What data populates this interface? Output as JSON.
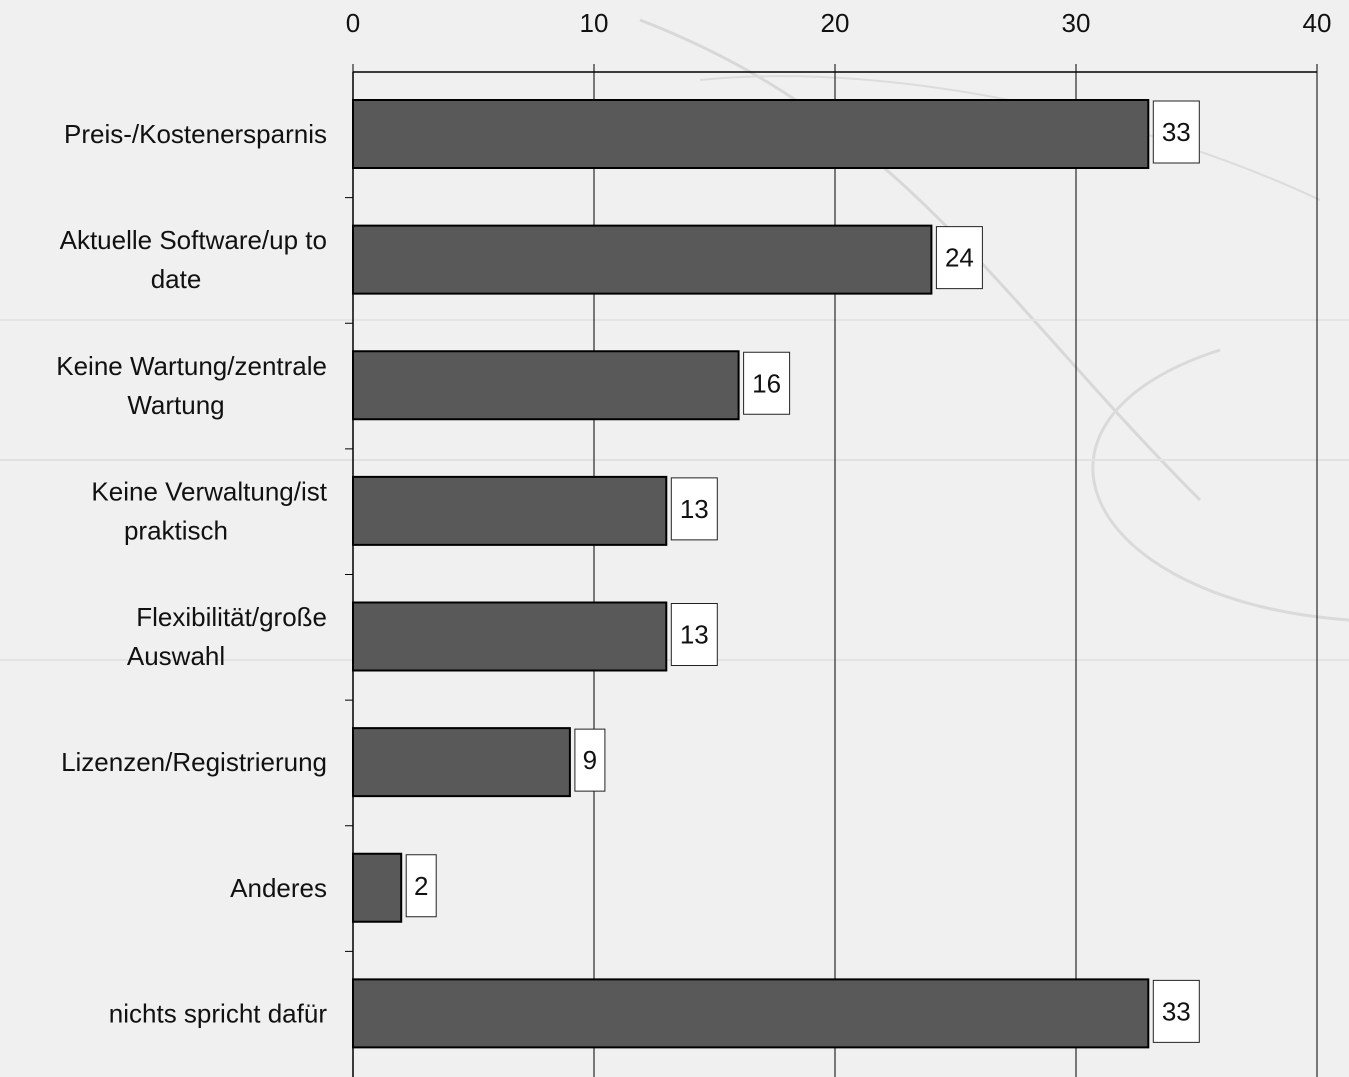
{
  "chart_data": {
    "type": "bar",
    "orientation": "horizontal",
    "categories": [
      [
        "Preis-/Kostenersparnis"
      ],
      [
        "Aktuelle Software/up to",
        "date"
      ],
      [
        "Keine Wartung/zentrale",
        "Wartung"
      ],
      [
        "Keine Verwaltung/ist",
        "praktisch"
      ],
      [
        "Flexibilität/große",
        "Auswahl"
      ],
      [
        "Lizenzen/Registrierung"
      ],
      [
        "Anderes"
      ],
      [
        "nichts spricht dafür"
      ]
    ],
    "values": [
      33,
      24,
      16,
      13,
      13,
      9,
      2,
      33
    ],
    "data_labels": [
      "33",
      "24",
      "16",
      "13",
      "13",
      "9",
      "2",
      "33"
    ],
    "xlim": [
      0,
      40
    ],
    "ticks": [
      0,
      10,
      20,
      30,
      40
    ],
    "tick_labels": [
      "0",
      "10",
      "20",
      "30",
      "40"
    ],
    "axis_position": "top",
    "grid": true,
    "colors": {
      "bar": "#595959",
      "bar_stroke": "#000000",
      "grid": "#000000",
      "background": "#f0f0f0",
      "label_box": "#ffffff"
    }
  }
}
